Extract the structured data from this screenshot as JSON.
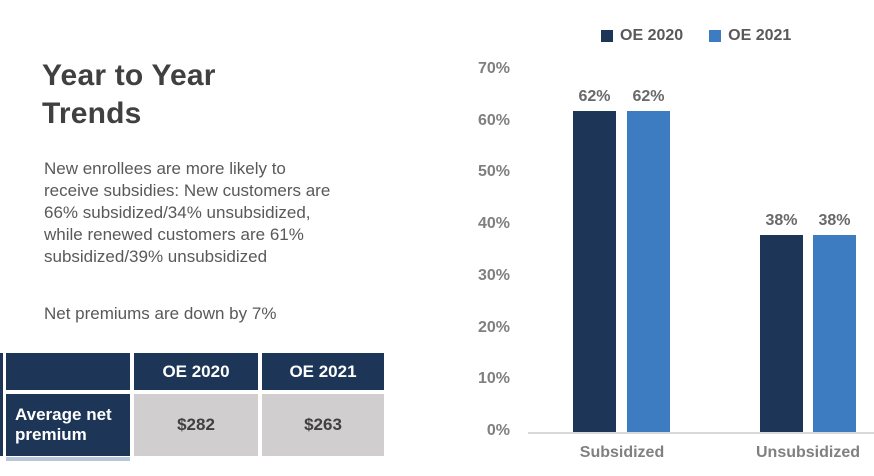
{
  "left": {
    "title_lines": [
      "Year to Year",
      "Trends"
    ],
    "paragraph_lines": [
      "New enrollees are more likely to",
      "receive subsidies: New customers are",
      "66% subsidized/34% unsubsidized,",
      "while renewed customers are 61%",
      "subsidized/39% unsubsidized"
    ],
    "note": "Net premiums are down by 7%",
    "table": {
      "headers": [
        "",
        "OE 2020",
        "OE 2021"
      ],
      "rows": [
        {
          "label": "Average net premium",
          "values": [
            "$282",
            "$263"
          ]
        }
      ]
    }
  },
  "chart_data": {
    "type": "bar",
    "title": "",
    "categories": [
      "Subsidized",
      "Unsubsidized"
    ],
    "series": [
      {
        "name": "OE 2020",
        "color": "#1D3557",
        "values": [
          62,
          38
        ]
      },
      {
        "name": "OE 2021",
        "color": "#3D7CC1",
        "values": [
          62,
          38
        ]
      }
    ],
    "unit": "%",
    "ylim": [
      0,
      70
    ],
    "ytick_step": 10,
    "yticks": [
      "0%",
      "10%",
      "20%",
      "30%",
      "40%",
      "50%",
      "60%",
      "70%"
    ],
    "data_labels": true,
    "legend_position": "top",
    "grid": false
  },
  "colors": {
    "navy": "#1D3557",
    "blue": "#3D7CC1",
    "table_cell_gray": "#D0CECE",
    "title_text": "#404040",
    "body_text": "#595959",
    "axis_line": "#D9D9D9",
    "tick_text": "#7F7F7F",
    "clipped_row_strip": "#B4C7DD"
  }
}
